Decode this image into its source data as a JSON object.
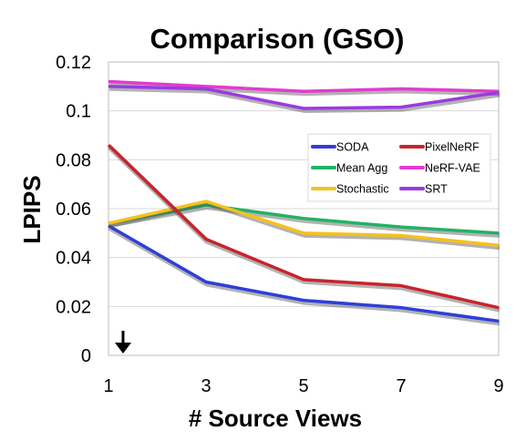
{
  "chart_data": {
    "type": "line",
    "title": "Comparison (GSO)",
    "xlabel": "# Source Views",
    "ylabel": "LPIPS",
    "x": [
      1,
      3,
      5,
      7,
      9
    ],
    "x_ticks": [
      "1",
      "3",
      "5",
      "7",
      "9"
    ],
    "y_ticks": [
      "0",
      "0.02",
      "0.04",
      "0.06",
      "0.08",
      "0.1",
      "0.12"
    ],
    "xlim": [
      1,
      9
    ],
    "ylim": [
      0,
      0.12
    ],
    "grid": true,
    "legend_position": "right-middle",
    "annotation": "down-arrow",
    "series": [
      {
        "name": "SODA",
        "color": "#2f3fd8",
        "values": [
          0.053,
          0.03,
          0.0225,
          0.0195,
          0.014
        ]
      },
      {
        "name": "Mean Agg",
        "color": "#22b266",
        "values": [
          0.054,
          0.0615,
          0.056,
          0.0525,
          0.05
        ]
      },
      {
        "name": "Stochastic",
        "color": "#f5c21a",
        "values": [
          0.054,
          0.063,
          0.05,
          0.049,
          0.045
        ]
      },
      {
        "name": "PixelNeRF",
        "color": "#c8242c",
        "values": [
          0.086,
          0.0475,
          0.031,
          0.0285,
          0.0195
        ]
      },
      {
        "name": "NeRF-VAE",
        "color": "#e23bd0",
        "values": [
          0.112,
          0.11,
          0.108,
          0.109,
          0.108
        ]
      },
      {
        "name": "SRT",
        "color": "#9b3be0",
        "values": [
          0.11,
          0.109,
          0.101,
          0.1015,
          0.1075
        ]
      }
    ]
  }
}
